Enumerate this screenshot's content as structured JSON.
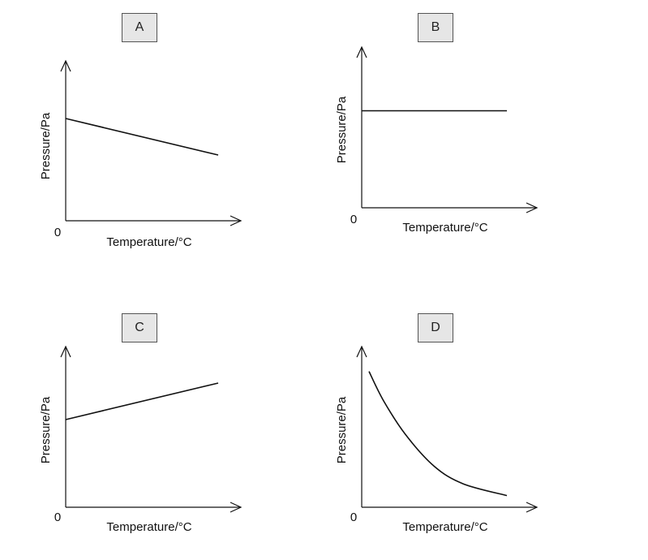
{
  "chart_data": [
    {
      "label": "A",
      "type": "line",
      "xlabel": "Temperature/°C",
      "ylabel": "Pressure/Pa",
      "origin_label": "0",
      "shape": "linear-decreasing",
      "points": [
        [
          0,
          0.7
        ],
        [
          1,
          0.45
        ]
      ]
    },
    {
      "label": "B",
      "type": "line",
      "xlabel": "Temperature/°C",
      "ylabel": "Pressure/Pa",
      "origin_label": "0",
      "shape": "constant",
      "points": [
        [
          0,
          0.66
        ],
        [
          1,
          0.66
        ]
      ]
    },
    {
      "label": "C",
      "type": "line",
      "xlabel": "Temperature/°C",
      "ylabel": "Pressure/Pa",
      "origin_label": "0",
      "shape": "linear-increasing",
      "points": [
        [
          0,
          0.6
        ],
        [
          1,
          0.85
        ]
      ]
    },
    {
      "label": "D",
      "type": "line",
      "xlabel": "Temperature/°C",
      "ylabel": "Pressure/Pa",
      "origin_label": "0",
      "shape": "decreasing-curve",
      "points": [
        [
          0.05,
          0.93
        ],
        [
          0.15,
          0.73
        ],
        [
          0.3,
          0.5
        ],
        [
          0.5,
          0.28
        ],
        [
          0.7,
          0.16
        ],
        [
          1,
          0.08
        ]
      ]
    }
  ],
  "colors": {
    "line": "#111111",
    "box_fill": "#e6e6e6",
    "box_border": "#555555"
  }
}
